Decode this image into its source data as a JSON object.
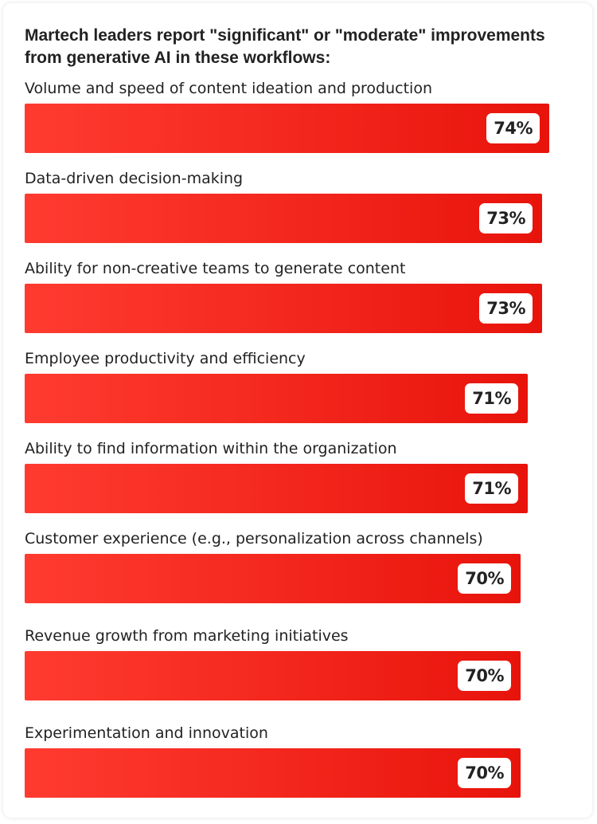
{
  "chart_data": {
    "type": "bar",
    "orientation": "horizontal",
    "title": "Martech leaders report \"significant\" or \"moderate\" improvements from generative AI in these workflows:",
    "categories": [
      "Volume and speed of content ideation and production",
      "Data-driven decision-making",
      "Ability for non-creative teams to generate content",
      "Employee productivity and efficiency",
      "Ability to find information within the organization",
      "Customer experience (e.g., personalization across channels)",
      "Revenue growth from marketing initiatives",
      "Experimentation and innovation"
    ],
    "values": [
      74,
      73,
      73,
      71,
      71,
      70,
      70,
      70
    ],
    "value_labels": [
      "74%",
      "73%",
      "73%",
      "71%",
      "71%",
      "70%",
      "70%",
      "70%"
    ],
    "unit": "%",
    "xlim": [
      0,
      100
    ],
    "grid": false,
    "legend": "none",
    "colors": {
      "bar_start": "#ff3b30",
      "bar_end": "#e8140c",
      "label_text": "#222222",
      "pill_bg": "#ffffff"
    }
  }
}
